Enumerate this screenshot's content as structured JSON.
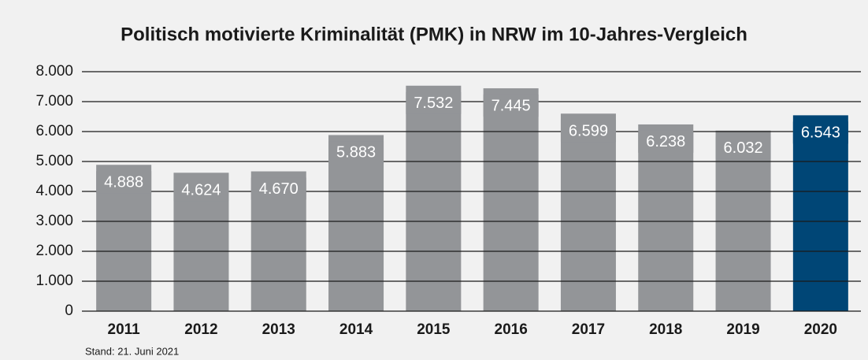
{
  "chart_data": {
    "type": "bar",
    "title": "Politisch motivierte Kriminalität (PMK) in NRW im 10-Jahres-Vergleich",
    "categories": [
      "2011",
      "2012",
      "2013",
      "2014",
      "2015",
      "2016",
      "2017",
      "2018",
      "2019",
      "2020"
    ],
    "values": [
      4888,
      4624,
      4670,
      5883,
      7532,
      7445,
      6599,
      6238,
      6032,
      6543
    ],
    "value_labels": [
      "4.888",
      "4.624",
      "4.670",
      "5.883",
      "7.532",
      "7.445",
      "6.599",
      "6.238",
      "6.032",
      "6.543"
    ],
    "colors": [
      "#939598",
      "#939598",
      "#939598",
      "#939598",
      "#939598",
      "#939598",
      "#939598",
      "#939598",
      "#939598",
      "#004676"
    ],
    "ylim": [
      0,
      8000
    ],
    "yticks": [
      0,
      {
        "value": 1000,
        "label": "1.000"
      },
      {
        "value": 2000,
        "label": "2.000"
      },
      {
        "value": 3000,
        "label": "3.000"
      },
      {
        "value": 4000,
        "label": "4.000"
      },
      {
        "value": 5000,
        "label": "5.000"
      },
      {
        "value": 6000,
        "label": "6.000"
      },
      {
        "value": 7000,
        "label": "7.000"
      },
      {
        "value": 8000,
        "label": "8.000"
      }
    ],
    "grid": true,
    "note": "Stand: 21. Juni 2021"
  }
}
